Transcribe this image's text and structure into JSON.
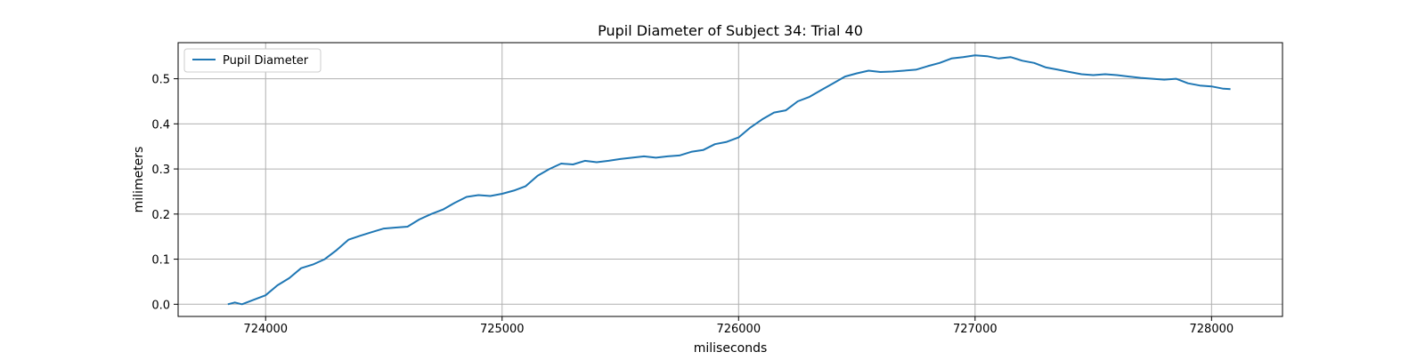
{
  "chart_data": {
    "type": "line",
    "title": "Pupil Diameter of Subject 34: Trial 40",
    "xlabel": "miliseconds",
    "ylabel": "milimeters",
    "xlim": [
      723630,
      728300
    ],
    "ylim": [
      -0.027,
      0.58
    ],
    "xticks": [
      724000,
      725000,
      726000,
      727000,
      728000
    ],
    "yticks": [
      0.0,
      0.1,
      0.2,
      0.3,
      0.4,
      0.5
    ],
    "ytick_labels": [
      "0.0",
      "0.1",
      "0.2",
      "0.3",
      "0.4",
      "0.5"
    ],
    "grid": true,
    "legend": {
      "position": "upper-left"
    },
    "line_color": "#1f77b4",
    "series": [
      {
        "name": "Pupil Diameter",
        "x": [
          723840,
          723870,
          723900,
          723950,
          724000,
          724050,
          724100,
          724150,
          724200,
          724250,
          724300,
          724350,
          724400,
          724450,
          724500,
          724550,
          724600,
          724650,
          724700,
          724750,
          724800,
          724850,
          724900,
          724950,
          725000,
          725050,
          725100,
          725150,
          725200,
          725250,
          725300,
          725350,
          725400,
          725450,
          725500,
          725550,
          725600,
          725650,
          725700,
          725750,
          725800,
          725850,
          725900,
          725950,
          726000,
          726050,
          726100,
          726150,
          726200,
          726250,
          726300,
          726350,
          726400,
          726450,
          726500,
          726550,
          726600,
          726650,
          726700,
          726750,
          726800,
          726850,
          726900,
          726950,
          727000,
          727050,
          727100,
          727150,
          727200,
          727250,
          727300,
          727350,
          727400,
          727450,
          727500,
          727550,
          727600,
          727650,
          727700,
          727750,
          727800,
          727850,
          727900,
          727950,
          728000,
          728050,
          728080
        ],
        "y": [
          0.0,
          0.004,
          0.0,
          0.01,
          0.02,
          0.042,
          0.058,
          0.08,
          0.088,
          0.1,
          0.12,
          0.143,
          0.152,
          0.16,
          0.168,
          0.17,
          0.172,
          0.188,
          0.2,
          0.21,
          0.225,
          0.238,
          0.242,
          0.24,
          0.245,
          0.252,
          0.262,
          0.285,
          0.3,
          0.312,
          0.31,
          0.318,
          0.315,
          0.318,
          0.322,
          0.325,
          0.328,
          0.325,
          0.328,
          0.33,
          0.338,
          0.342,
          0.355,
          0.36,
          0.37,
          0.392,
          0.41,
          0.425,
          0.43,
          0.45,
          0.46,
          0.475,
          0.49,
          0.505,
          0.512,
          0.518,
          0.515,
          0.516,
          0.518,
          0.52,
          0.528,
          0.535,
          0.545,
          0.548,
          0.552,
          0.55,
          0.545,
          0.548,
          0.54,
          0.535,
          0.525,
          0.52,
          0.515,
          0.51,
          0.508,
          0.51,
          0.508,
          0.505,
          0.502,
          0.5,
          0.498,
          0.5,
          0.49,
          0.485,
          0.483,
          0.478,
          0.477
        ]
      }
    ]
  }
}
